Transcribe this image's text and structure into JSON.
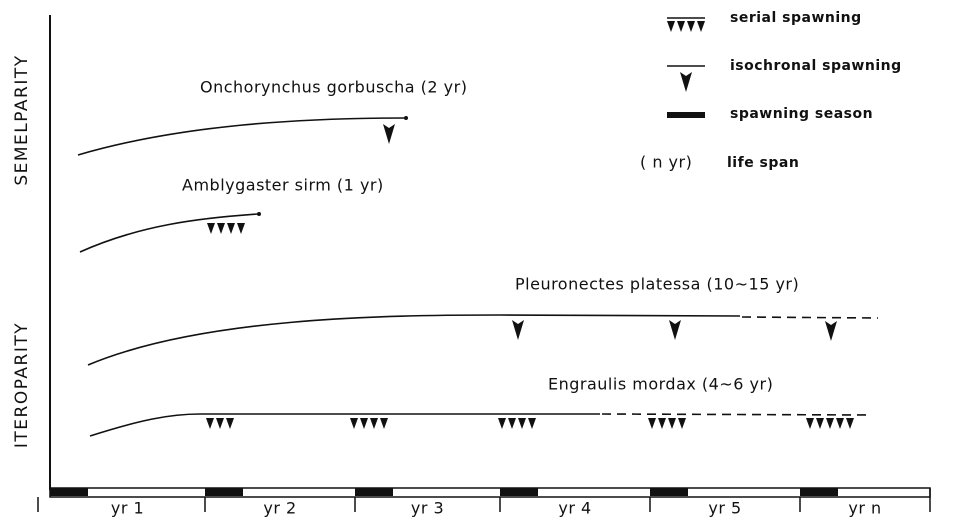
{
  "axis_labels": {
    "top": "SEMELPARITY",
    "bottom": "ITEROPARITY"
  },
  "legend": {
    "serial": "serial spawning",
    "isochronal": "isochronal spawning",
    "season": "spawning season",
    "span_symbol": "( n yr)",
    "span": "life span"
  },
  "species": [
    "Onchorynchus gorbuscha (2 yr)",
    "Amblygaster sirm (1 yr)",
    "Pleuronectes platessa (10~15 yr)",
    "Engraulis mordax (4~6 yr)"
  ],
  "years": [
    "yr 1",
    "yr 2",
    "yr 3",
    "yr 4",
    "yr 5",
    "yr n"
  ]
}
